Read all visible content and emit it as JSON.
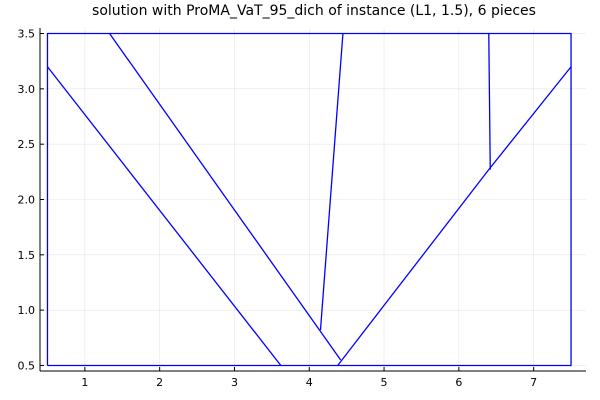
{
  "chart_data": {
    "type": "line",
    "title": "solution with ProMA_VaT_95_dich of instance (L1, 1.5), 6 pieces",
    "xlabel": "",
    "ylabel": "",
    "xlim": [
      0.4,
      7.7
    ],
    "ylim": [
      0.45,
      3.55
    ],
    "x_ticks": [
      1,
      2,
      3,
      4,
      5,
      6,
      7
    ],
    "y_ticks": [
      0.5,
      1.0,
      1.5,
      2.0,
      2.5,
      3.0,
      3.5
    ],
    "x_tick_labels": [
      "1",
      "2",
      "3",
      "4",
      "5",
      "6",
      "7"
    ],
    "y_tick_labels": [
      "0.5",
      "1.0",
      "1.5",
      "2.0",
      "2.5",
      "3.0",
      "3.5"
    ],
    "grid": true,
    "legend": "none",
    "line_color": "#0000ff",
    "series": [
      {
        "values": [
          [
            0.5,
            0.5
          ],
          [
            7.5,
            0.5
          ],
          [
            7.5,
            3.5
          ],
          [
            0.5,
            3.5
          ],
          [
            0.5,
            0.5
          ]
        ]
      },
      {
        "values": [
          [
            0.5,
            3.2
          ],
          [
            3.62,
            0.5
          ]
        ]
      },
      {
        "values": [
          [
            1.33,
            3.5
          ],
          [
            4.42,
            0.55
          ]
        ]
      },
      {
        "values": [
          [
            4.15,
            0.82
          ],
          [
            4.45,
            3.5
          ]
        ]
      },
      {
        "values": [
          [
            4.38,
            0.5
          ],
          [
            6.4,
            2.27
          ],
          [
            7.5,
            3.2
          ]
        ]
      },
      {
        "values": [
          [
            6.4,
            3.5
          ],
          [
            6.42,
            2.27
          ]
        ]
      }
    ]
  }
}
